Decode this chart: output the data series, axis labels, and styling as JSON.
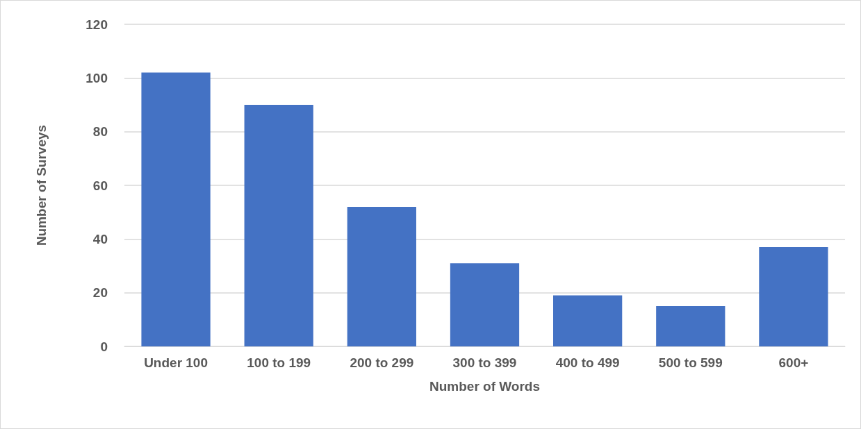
{
  "chart_data": {
    "type": "bar",
    "xlabel": "Number of Words",
    "ylabel": "Number of Surveys",
    "categories": [
      "Under 100",
      "100 to 199",
      "200 to 299",
      "300 to 399",
      "400 to 499",
      "500 to 599",
      "600+"
    ],
    "values": [
      102,
      90,
      52,
      31,
      19,
      15,
      37
    ],
    "color": "#4472c4",
    "ylim": [
      0,
      120
    ],
    "yticks": [
      0,
      20,
      40,
      60,
      80,
      100,
      120
    ],
    "grid": "y"
  }
}
